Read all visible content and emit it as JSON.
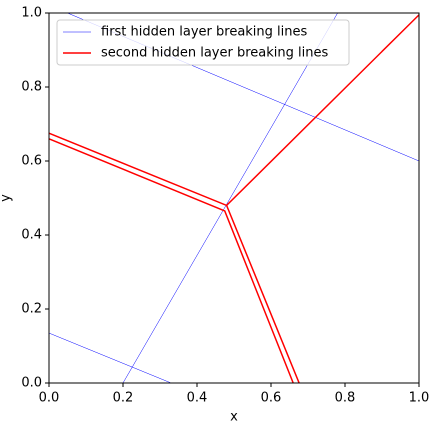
{
  "chart_data": {
    "type": "line",
    "xlabel": "x",
    "ylabel": "y",
    "xlim": [
      0,
      1
    ],
    "ylim": [
      0,
      1
    ],
    "xticks": [
      {
        "value": 0,
        "label": "0.0"
      },
      {
        "value": 0.2,
        "label": "0.2"
      },
      {
        "value": 0.4,
        "label": "0.4"
      },
      {
        "value": 0.6,
        "label": "0.6"
      },
      {
        "value": 0.8,
        "label": "0.8"
      },
      {
        "value": 1,
        "label": "1.0"
      }
    ],
    "yticks": [
      {
        "value": 0,
        "label": "0.0"
      },
      {
        "value": 0.2,
        "label": "0.2"
      },
      {
        "value": 0.4,
        "label": "0.4"
      },
      {
        "value": 0.6,
        "label": "0.6"
      },
      {
        "value": 0.8,
        "label": "0.8"
      },
      {
        "value": 1,
        "label": "1.0"
      }
    ],
    "legend": "upper left",
    "series": [
      {
        "name": "first hidden layer breaking lines",
        "color": "#0000ff",
        "width": 0.5,
        "lines": [
          {
            "x": [
              0.05,
              1.0
            ],
            "y": [
              1.0,
              0.6
            ]
          },
          {
            "x": [
              0.2,
              0.78
            ],
            "y": [
              0.0,
              1.0
            ]
          },
          {
            "x": [
              0.0,
              0.33
            ],
            "y": [
              0.135,
              0.0
            ]
          }
        ]
      },
      {
        "name": "second hidden layer breaking lines",
        "color": "#ff0000",
        "width": 1.5,
        "lines": [
          {
            "x": [
              0.0,
              0.48,
              1.0
            ],
            "y": [
              0.675,
              0.48,
              0.995
            ]
          },
          {
            "x": [
              0.0,
              0.475,
              0.66
            ],
            "y": [
              0.66,
              0.465,
              0.0
            ]
          },
          {
            "x": [
              0.48,
              0.676
            ],
            "y": [
              0.48,
              0.0
            ]
          }
        ]
      }
    ]
  }
}
